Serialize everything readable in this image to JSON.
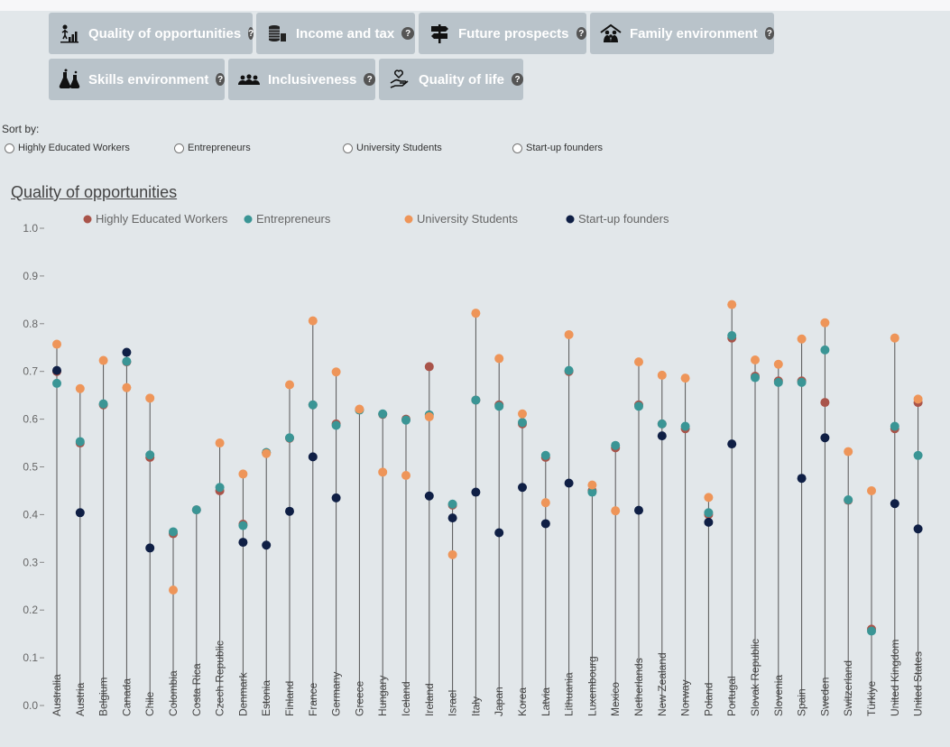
{
  "tabs": [
    {
      "label": "Quality of opportunities",
      "icon": "bar-chart-person-icon",
      "help": "?"
    },
    {
      "label": "Income and tax",
      "icon": "coin-stack-icon",
      "help": "?"
    },
    {
      "label": "Future prospects",
      "icon": "signpost-icon",
      "help": "?"
    },
    {
      "label": "Family environment",
      "icon": "family-icon",
      "help": "?"
    },
    {
      "label": "Skills environment",
      "icon": "lab-flask-icon",
      "help": "?"
    },
    {
      "label": "Inclusiveness",
      "icon": "group-people-icon",
      "help": "?"
    },
    {
      "label": "Quality of life",
      "icon": "hand-heart-icon",
      "help": "?"
    }
  ],
  "sort": {
    "label": "Sort by:",
    "options": [
      "Highly Educated Workers",
      "Entrepreneurs",
      "University Students",
      "Start-up founders"
    ]
  },
  "colors": {
    "hew": "#a9544a",
    "ent": "#3a9595",
    "uni": "#ee9559",
    "suf": "#0f1f45"
  },
  "chart_data": {
    "type": "scatter",
    "title": "Quality of opportunities",
    "ylim": [
      0,
      1.0
    ],
    "yticks": [
      "0.0",
      "0.1",
      "0.2",
      "0.3",
      "0.4",
      "0.5",
      "0.6",
      "0.7",
      "0.8",
      "0.9",
      "1.0"
    ],
    "grid": false,
    "legend_position": "top",
    "categories": [
      "Australia",
      "Austria",
      "Belgium",
      "Canada",
      "Chile",
      "Colombia",
      "Costa Rica",
      "Czech Republic",
      "Denmark",
      "Estonia",
      "Finland",
      "France",
      "Germany",
      "Greece",
      "Hungary",
      "Iceland",
      "Ireland",
      "Israel",
      "Italy",
      "Japan",
      "Korea",
      "Latvia",
      "Lithuania",
      "Luxembourg",
      "Mexico",
      "Netherlands",
      "New Zealand",
      "Norway",
      "Poland",
      "Portugal",
      "Slovak Republic",
      "Slovenia",
      "Spain",
      "Sweden",
      "Switzerland",
      "Türkiye",
      "United Kingdom",
      "United States"
    ],
    "series": [
      {
        "name": "Highly Educated Workers",
        "key": "hew",
        "values": [
          0.7,
          0.55,
          0.63,
          0.72,
          0.52,
          0.36,
          0.41,
          0.45,
          0.38,
          0.53,
          0.56,
          0.63,
          0.59,
          0.62,
          0.61,
          0.6,
          0.71,
          0.42,
          0.64,
          0.63,
          0.59,
          0.52,
          0.7,
          0.45,
          0.54,
          0.63,
          0.59,
          0.58,
          0.4,
          0.77,
          0.69,
          0.68,
          0.68,
          0.635,
          0.43,
          0.16,
          0.58,
          0.635
        ]
      },
      {
        "name": "Entrepreneurs",
        "key": "ent",
        "values": [
          0.675,
          0.553,
          0.632,
          0.721,
          0.525,
          0.364,
          0.41,
          0.457,
          0.377,
          0.53,
          0.561,
          0.63,
          0.587,
          0.619,
          0.611,
          0.598,
          0.609,
          0.422,
          0.64,
          0.627,
          0.593,
          0.524,
          0.702,
          0.447,
          0.545,
          0.627,
          0.59,
          0.585,
          0.404,
          0.775,
          0.687,
          0.677,
          0.677,
          0.745,
          0.431,
          0.156,
          0.585,
          0.524
        ]
      },
      {
        "name": "University Students",
        "key": "uni",
        "values": [
          0.757,
          0.664,
          0.723,
          0.666,
          0.644,
          0.242,
          null,
          0.55,
          0.485,
          0.528,
          0.672,
          0.806,
          0.699,
          0.621,
          0.489,
          0.482,
          0.605,
          0.316,
          0.822,
          0.727,
          0.611,
          0.425,
          0.777,
          0.462,
          0.408,
          0.72,
          0.692,
          0.686,
          0.436,
          0.84,
          0.724,
          0.715,
          0.768,
          0.802,
          0.532,
          0.45,
          0.77,
          0.642
        ]
      },
      {
        "name": "Start-up founders",
        "key": "suf",
        "values": [
          0.702,
          0.404,
          null,
          0.74,
          0.33,
          null,
          null,
          null,
          0.342,
          0.336,
          0.407,
          0.521,
          0.435,
          null,
          null,
          null,
          0.439,
          0.393,
          0.447,
          0.362,
          0.457,
          0.381,
          0.466,
          null,
          null,
          0.409,
          0.565,
          null,
          0.384,
          0.548,
          null,
          null,
          0.476,
          0.561,
          null,
          null,
          0.423,
          0.37
        ]
      }
    ]
  }
}
